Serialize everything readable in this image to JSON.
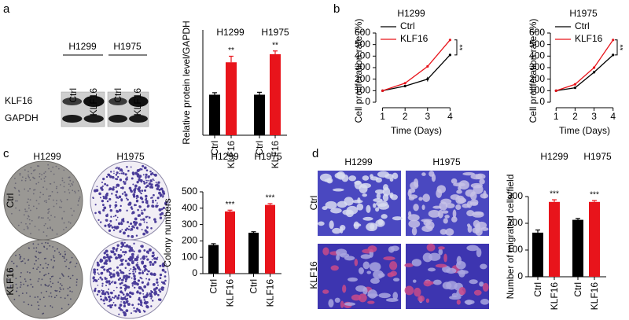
{
  "figure_text": {
    "panel_labels": [
      "a",
      "b",
      "c",
      "d"
    ],
    "blot": {
      "cell_lines": [
        "H1299",
        "H1975"
      ],
      "lanes": [
        "Ctrl",
        "KLF16",
        "Ctrl",
        "KLF16"
      ],
      "rows": [
        "KLF16",
        "GAPDH"
      ]
    },
    "colony": {
      "cell_lines": [
        "H1299",
        "H1975"
      ],
      "rows": [
        "Ctrl",
        "KLF16"
      ]
    },
    "migration": {
      "cell_lines": [
        "H1299",
        "H1975"
      ],
      "rows": [
        "Ctrl",
        "KLF16"
      ]
    }
  },
  "chart_data": [
    {
      "type": "bar",
      "ylabel": "Relative protein level/GAPDH",
      "groups": [
        "H1299",
        "H1975"
      ],
      "categories": [
        "Ctrl",
        "KLF16",
        "Ctrl",
        "KLF16"
      ],
      "values": [
        1.0,
        1.8,
        1.0,
        2.0
      ],
      "errors": [
        0.05,
        0.15,
        0.06,
        0.08
      ],
      "colors": [
        "#000000",
        "#e8141b",
        "#000000",
        "#e8141b"
      ],
      "ylim": [
        0,
        2.6
      ],
      "annotations": [
        {
          "index": 1,
          "text": "**"
        },
        {
          "index": 3,
          "text": "**"
        }
      ]
    },
    {
      "type": "line",
      "title": "H1299",
      "xlabel": "Time (Days)",
      "ylabel": "Cell proliferation rate (%)",
      "x": [
        1,
        2,
        3,
        4
      ],
      "xlim": [
        0.7,
        4.3
      ],
      "xticks": [
        1,
        2,
        3,
        4
      ],
      "ylim": [
        0,
        600
      ],
      "yticks": [
        0,
        100,
        200,
        300,
        400,
        500,
        600
      ],
      "series": [
        {
          "name": "Ctrl",
          "color": "#000000",
          "values": [
            100,
            140,
            200,
            410
          ],
          "errors": [
            null,
            null,
            20,
            null
          ]
        },
        {
          "name": "KLF16",
          "color": "#e8141b",
          "values": [
            100,
            165,
            310,
            540
          ],
          "errors": [
            null,
            null,
            null,
            null
          ]
        }
      ],
      "annotation": "**"
    },
    {
      "type": "line",
      "title": "H1975",
      "xlabel": "Time (Days)",
      "ylabel": "Cell proliferation rate (%)",
      "x": [
        1,
        2,
        3,
        4
      ],
      "xlim": [
        0.7,
        4.3
      ],
      "xticks": [
        1,
        2,
        3,
        4
      ],
      "ylim": [
        0,
        600
      ],
      "yticks": [
        0,
        100,
        200,
        300,
        400,
        500,
        600
      ],
      "series": [
        {
          "name": "Ctrl",
          "color": "#000000",
          "values": [
            100,
            125,
            260,
            410
          ],
          "errors": [
            null,
            null,
            null,
            null
          ]
        },
        {
          "name": "KLF16",
          "color": "#e8141b",
          "values": [
            100,
            155,
            300,
            540
          ],
          "errors": [
            null,
            null,
            null,
            null
          ]
        }
      ],
      "annotation": "**"
    },
    {
      "type": "bar",
      "ylabel": "Colony numbers",
      "groups": [
        "H1299",
        "H1975"
      ],
      "categories": [
        "Ctrl",
        "KLF16",
        "Ctrl",
        "KLF16"
      ],
      "values": [
        175,
        380,
        250,
        420
      ],
      "errors": [
        8,
        8,
        6,
        8
      ],
      "colors": [
        "#000000",
        "#e8141b",
        "#000000",
        "#e8141b"
      ],
      "ylim": [
        0,
        500
      ],
      "yticks": [
        0,
        100,
        200,
        300,
        400,
        500
      ],
      "annotations": [
        {
          "index": 1,
          "text": "***"
        },
        {
          "index": 3,
          "text": "***"
        }
      ]
    },
    {
      "type": "bar",
      "ylabel": "Number of migrated cells/field",
      "groups": [
        "H1299",
        "H1975"
      ],
      "categories": [
        "Ctrl",
        "KLF16",
        "Ctrl",
        "KLF16"
      ],
      "values": [
        165,
        280,
        213,
        280
      ],
      "errors": [
        10,
        8,
        5,
        5
      ],
      "colors": [
        "#000000",
        "#e8141b",
        "#000000",
        "#e8141b"
      ],
      "ylim": [
        0,
        300
      ],
      "yticks": [
        0,
        100,
        200,
        300
      ],
      "annotations": [
        {
          "index": 1,
          "text": "***"
        },
        {
          "index": 3,
          "text": "***"
        }
      ]
    }
  ]
}
